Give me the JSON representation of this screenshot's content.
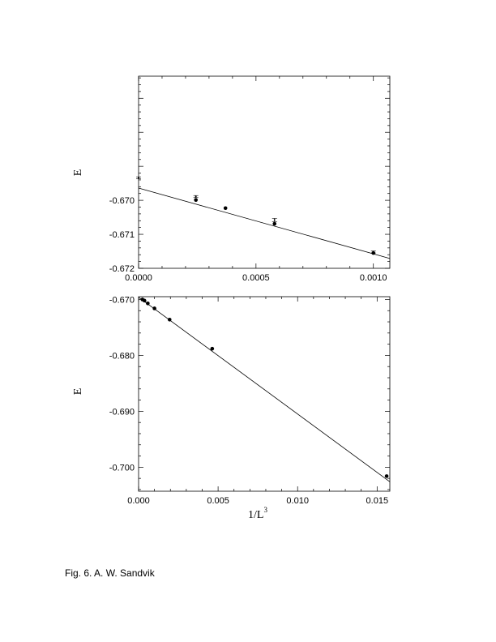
{
  "caption": "Fig. 6.  A. W. Sandvik",
  "chart_data": [
    {
      "type": "scatter",
      "title": "",
      "xlabel": "",
      "ylabel": "E",
      "xlim": [
        0,
        0.00107
      ],
      "ylim": [
        -0.672,
        -0.66635
      ],
      "xticks": [
        0,
        0.0005,
        0.001
      ],
      "xtick_labels": [
        "0.0000",
        "0.0005",
        "0.0010"
      ],
      "yticks": [
        -0.672,
        -0.671,
        -0.67
      ],
      "ytick_labels": [
        "-0.672",
        "-0.671",
        "-0.670"
      ],
      "series": [
        {
          "name": "filled points",
          "marker": "filled-circle",
          "x": [
            0.000244,
            0.00037,
            0.000579,
            0.001
          ],
          "y": [
            -0.66999,
            -0.67023,
            -0.67069,
            -0.67155
          ]
        },
        {
          "name": "open points with error bars",
          "marker": "small-dot-errorbar",
          "x": [
            0.0,
            0.000244,
            0.000579,
            0.001
          ],
          "y": [
            -0.66934,
            -0.66989,
            -0.67058,
            -0.67152
          ],
          "err": [
            3e-05,
            3e-05,
            5e-05,
            3e-05
          ]
        }
      ],
      "fit_line": {
        "x": [
          0,
          0.00107
        ],
        "y": [
          -0.66964,
          -0.67171
        ]
      }
    },
    {
      "type": "scatter",
      "title": "",
      "xlabel": "1/L",
      "xlabel_exponent": "3",
      "ylabel": "E",
      "xlim": [
        0,
        0.0158
      ],
      "ylim": [
        -0.7043,
        -0.6695
      ],
      "xticks": [
        0,
        0.005,
        0.01,
        0.015
      ],
      "xtick_labels": [
        "0.000",
        "0.005",
        "0.010",
        "0.015"
      ],
      "yticks": [
        -0.7,
        -0.69,
        -0.68,
        -0.67
      ],
      "ytick_labels": [
        "-0.700",
        "-0.690",
        "-0.680",
        "-0.670"
      ],
      "series": [
        {
          "name": "filled points",
          "marker": "filled-circle",
          "x": [
            0.000244,
            0.00037,
            0.000579,
            0.001,
            0.00195,
            0.00463,
            0.0156
          ],
          "y": [
            -0.67,
            -0.6702,
            -0.6707,
            -0.6716,
            -0.6736,
            -0.6788,
            -0.7016
          ]
        }
      ],
      "fit_line": {
        "x": [
          0,
          0.0158
        ],
        "y": [
          -0.6696,
          -0.7026
        ]
      }
    }
  ]
}
